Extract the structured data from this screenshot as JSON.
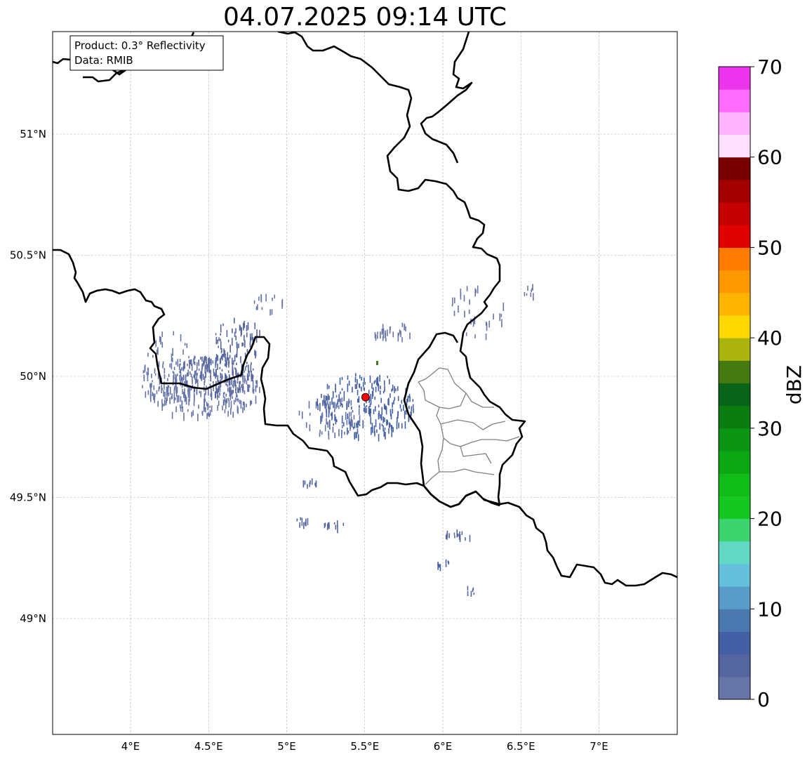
{
  "title": "04.07.2025 09:14 UTC",
  "info_box": {
    "product": "Product: 0.3° Reflectivity",
    "data": "Data: RMIB"
  },
  "lon_ticks": [
    "4°E",
    "4.5°E",
    "5°E",
    "5.5°E",
    "6°E",
    "6.5°E",
    "7°E"
  ],
  "lat_ticks": [
    "51°N",
    "50.5°N",
    "50°N",
    "49.5°N",
    "49°N"
  ],
  "colorbar": {
    "label": "dBZ",
    "tick_labels": [
      "0",
      "10",
      "20",
      "30",
      "40",
      "50",
      "60",
      "70"
    ],
    "colors": [
      "#6674a8",
      "#5565a0",
      "#4460a4",
      "#4c78b0",
      "#5a9cc8",
      "#64c0dc",
      "#60d8c4",
      "#3cd46c",
      "#14c820",
      "#10bc18",
      "#0ca814",
      "#0c9414",
      "#0a7c10",
      "#086418",
      "#447a10",
      "#aab40c",
      "#ffd800",
      "#ffb400",
      "#ff9800",
      "#ff7c00",
      "#e00000",
      "#c40000",
      "#a40000",
      "#780000",
      "#ffe0ff",
      "#ffb4ff",
      "#ff6cff",
      "#ec34ec"
    ]
  },
  "radar_site": {
    "lon": 5.505,
    "lat": 49.914,
    "color": "#ff0000"
  },
  "map": {
    "extent": {
      "lon_min": 3.5,
      "lon_max": 7.5,
      "lat_min": 48.5,
      "lat_max": 51.45
    }
  }
}
